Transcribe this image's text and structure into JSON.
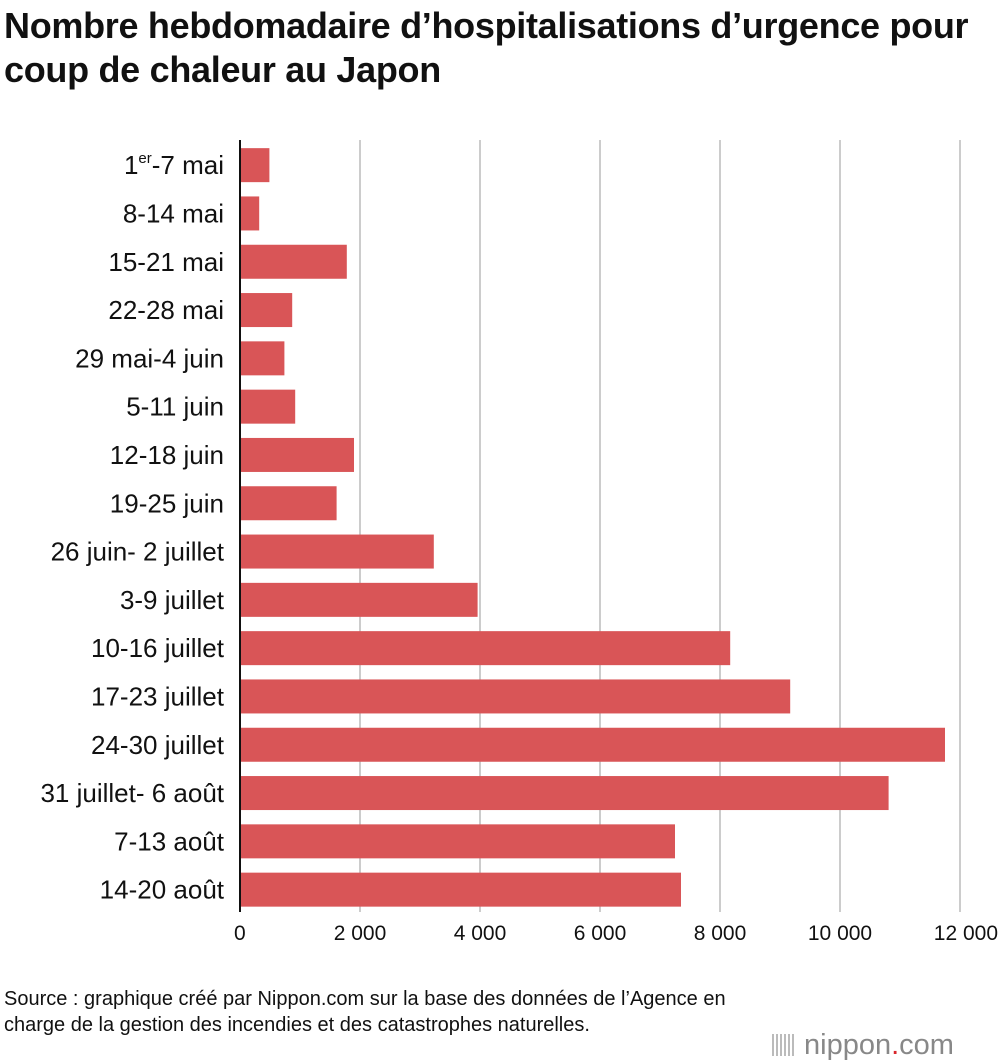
{
  "title": "Nombre hebdomadaire d’hospitalisations d’urgence pour coup de chaleur au Japon",
  "source": "Source : graphique créé par Nippon.com sur la base des données de l’Agence en charge de la gestion des incendies et des catastrophes naturelles.",
  "logo": {
    "part1": "nippon",
    "dot": ".",
    "part2": "com",
    "icon": "sound-bars-icon"
  },
  "colors": {
    "bar": "#d95557",
    "grid": "#cccccc",
    "axis": "#111111"
  },
  "chart_data": {
    "type": "bar",
    "orientation": "horizontal",
    "categories": [
      "1er-7 mai",
      "8-14 mai",
      "15-21 mai",
      "22-28 mai",
      "29 mai-4 juin",
      "5-11 juin",
      "12-18 juin",
      "19-25 juin",
      "26 juin- 2 juillet",
      "3-9 juillet",
      "10-16 juillet",
      "17-23 juillet",
      "24-30 juillet",
      "31 juillet- 6 août",
      "7-13 août",
      "14-20 août"
    ],
    "values": [
      490,
      320,
      1780,
      870,
      740,
      920,
      1900,
      1610,
      3230,
      3960,
      8170,
      9170,
      11750,
      10810,
      7250,
      7350
    ],
    "xlim": [
      0,
      12000
    ],
    "xticks": [
      0,
      2000,
      4000,
      6000,
      8000,
      10000,
      12000
    ],
    "xtick_labels": [
      "0",
      "2 000",
      "4 000",
      "6 000",
      "8 000",
      "10 000",
      "12 000"
    ],
    "grid": "vertical",
    "xlabel": "",
    "ylabel": ""
  }
}
